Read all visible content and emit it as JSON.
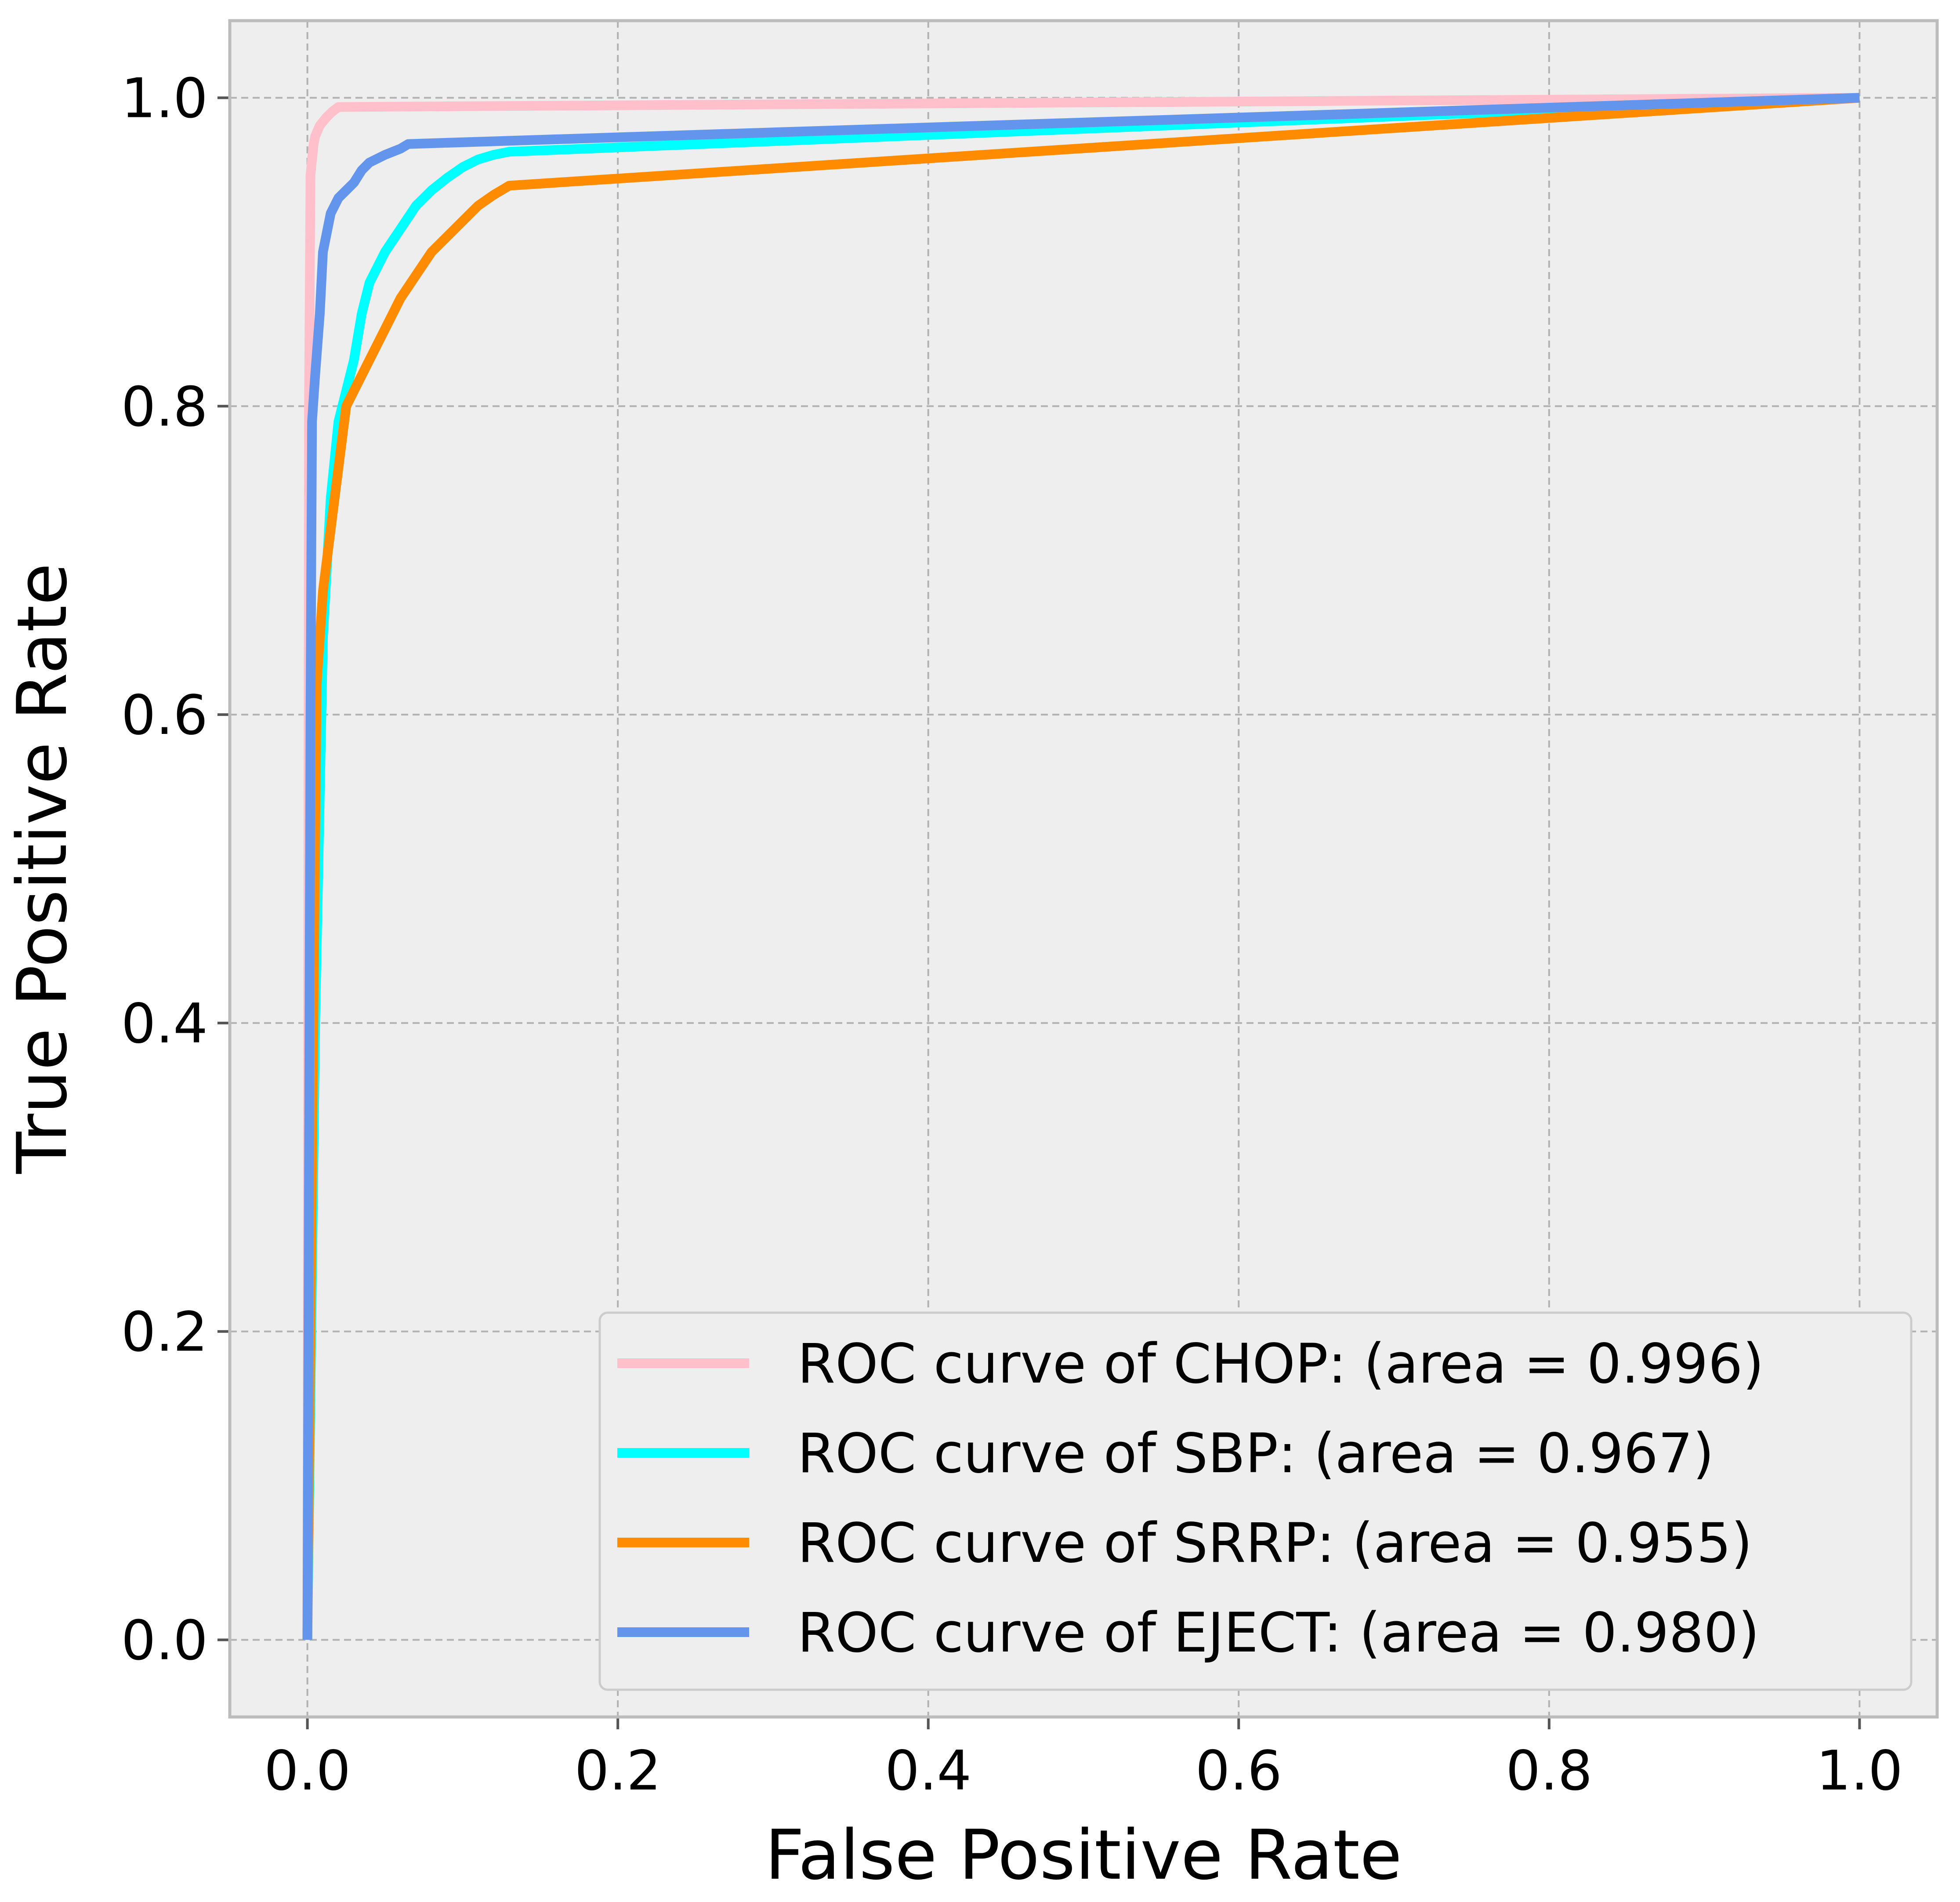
{
  "chart_data": {
    "type": "line",
    "title": "",
    "xlabel": "False Positive Rate",
    "ylabel": "True Positive Rate",
    "xlim": [
      -0.05,
      1.05
    ],
    "ylim": [
      -0.05,
      1.05
    ],
    "xticks": [
      0.0,
      0.2,
      0.4,
      0.6,
      0.8,
      1.0
    ],
    "yticks": [
      0.0,
      0.2,
      0.4,
      0.6,
      0.8,
      1.0
    ],
    "xtick_labels": [
      "0.0",
      "0.2",
      "0.4",
      "0.6",
      "0.8",
      "1.0"
    ],
    "ytick_labels": [
      "0.0",
      "0.2",
      "0.4",
      "0.6",
      "0.8",
      "1.0"
    ],
    "grid": true,
    "legend_position": "lower-right",
    "series": [
      {
        "name": "ROC curve of CHOP: (area = 0.996)",
        "color": "#ffc0cb",
        "x": [
          0.0,
          0.001,
          0.002,
          0.004,
          0.005,
          0.008,
          0.012,
          0.016,
          0.02,
          1.0
        ],
        "y": [
          0.0,
          0.8,
          0.95,
          0.97,
          0.975,
          0.982,
          0.987,
          0.991,
          0.994,
          1.0
        ]
      },
      {
        "name": "ROC curve of SBP: (area = 0.967)",
        "color": "#00ffff",
        "x": [
          0.0,
          0.005,
          0.01,
          0.015,
          0.02,
          0.025,
          0.03,
          0.035,
          0.04,
          0.045,
          0.05,
          0.06,
          0.07,
          0.08,
          0.09,
          0.1,
          0.11,
          0.12,
          0.13,
          1.0
        ],
        "y": [
          0.0,
          0.4,
          0.65,
          0.74,
          0.79,
          0.81,
          0.83,
          0.86,
          0.88,
          0.89,
          0.9,
          0.915,
          0.93,
          0.94,
          0.948,
          0.955,
          0.96,
          0.963,
          0.965,
          1.0
        ]
      },
      {
        "name": "ROC curve of SRRP: (area = 0.955)",
        "color": "#ff8c00",
        "x": [
          0.0,
          0.006,
          0.01,
          0.015,
          0.02,
          0.025,
          0.03,
          0.04,
          0.05,
          0.06,
          0.07,
          0.08,
          0.09,
          0.1,
          0.11,
          0.12,
          0.13,
          1.0
        ],
        "y": [
          0.0,
          0.62,
          0.68,
          0.72,
          0.76,
          0.8,
          0.81,
          0.83,
          0.85,
          0.87,
          0.885,
          0.9,
          0.91,
          0.92,
          0.93,
          0.937,
          0.943,
          1.0
        ]
      },
      {
        "name": "ROC curve of EJECT: (area = 0.980)",
        "color": "#6495ed",
        "x": [
          0.0,
          0.002,
          0.003,
          0.005,
          0.008,
          0.01,
          0.015,
          0.02,
          0.025,
          0.03,
          0.035,
          0.04,
          0.05,
          0.06,
          0.065,
          1.0
        ],
        "y": [
          0.0,
          0.6,
          0.79,
          0.82,
          0.86,
          0.9,
          0.925,
          0.935,
          0.94,
          0.945,
          0.953,
          0.958,
          0.963,
          0.967,
          0.97,
          1.0
        ]
      }
    ]
  }
}
